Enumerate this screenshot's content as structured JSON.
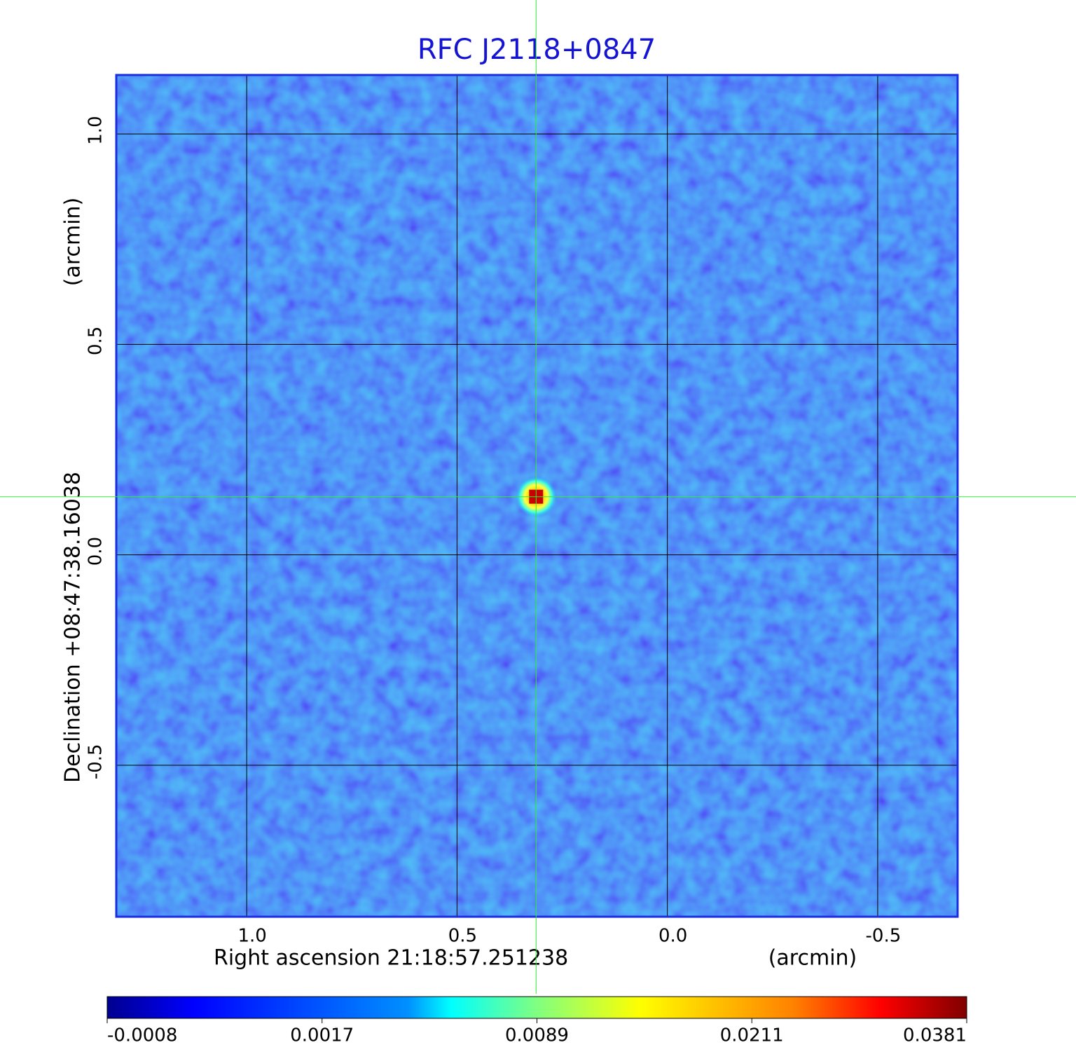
{
  "chart_data": {
    "type": "image",
    "title": "RFC J2118+0847",
    "x_label": "Right ascension  21:18:57.251238",
    "x_unit": "(arcmin)",
    "y_label": "Declination  +08:47:38.16038",
    "y_unit": "(arcmin)",
    "xlim": [
      1.31,
      -0.69
    ],
    "ylim": [
      -0.86,
      1.14
    ],
    "xticks": [
      {
        "value": 1,
        "label": "1.0"
      },
      0.5,
      {
        "value": 0,
        "label": "0.0"
      },
      -0.5
    ],
    "yticks": [
      {
        "value": 1,
        "label": "1.0"
      },
      0.5,
      {
        "value": 0,
        "label": "0.0"
      },
      -0.5
    ],
    "grid": true,
    "crosshair": {
      "x": 0.312,
      "y": 0.138
    },
    "colorbar_ticks": [
      -0.0008,
      0.0017,
      0.0089,
      0.0211,
      0.0381
    ],
    "colormap": "jet"
  }
}
